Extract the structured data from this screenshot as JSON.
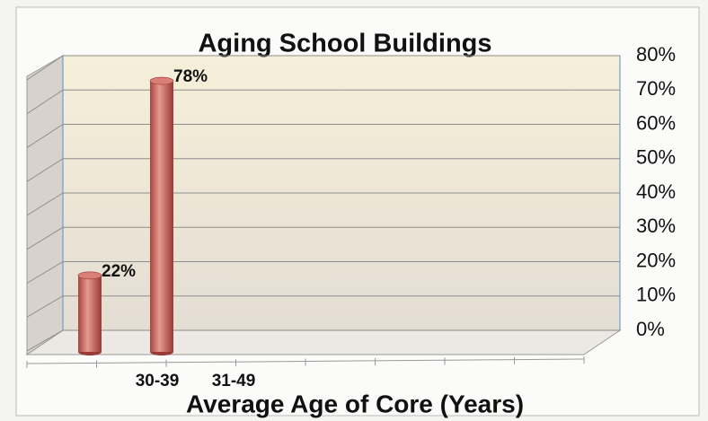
{
  "chart_data": {
    "type": "bar",
    "title": "Aging School Buildings",
    "x_label": "Average Age of Core (Years)",
    "categories": [
      null,
      "30-39",
      "31-49"
    ],
    "values": [
      22,
      78,
      null
    ],
    "value_labels": [
      "22%",
      "78%",
      null
    ],
    "color": "#c9605a",
    "ylim": [
      0,
      80
    ],
    "yticks": [
      {
        "value": 0,
        "label": "0%"
      },
      {
        "value": 10,
        "label": "10%"
      },
      {
        "value": 20,
        "label": "20%"
      },
      {
        "value": 30,
        "label": "30%"
      },
      {
        "value": 40,
        "label": "40%"
      },
      {
        "value": 50,
        "label": "50%"
      },
      {
        "value": 60,
        "label": "60%"
      },
      {
        "value": 70,
        "label": "70%"
      },
      {
        "value": 80,
        "label": "80%"
      }
    ],
    "grid": true,
    "y_axis_side": "right"
  }
}
